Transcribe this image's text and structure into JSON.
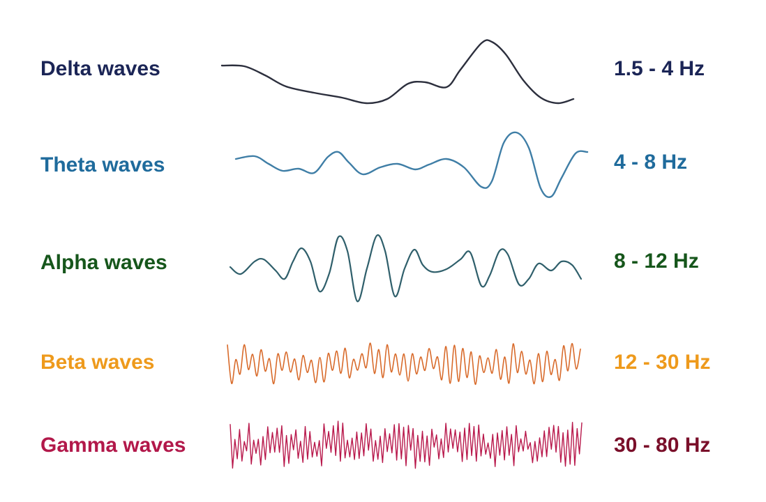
{
  "rows": [
    {
      "label": "Delta waves",
      "range": "1.5 - 4 Hz",
      "label_color": "#1b2556",
      "range_color": "#1b2556",
      "wave_color": "#2c2f3d"
    },
    {
      "label": "Theta waves",
      "range": "4 - 8 Hz",
      "label_color": "#1f6b9c",
      "range_color": "#1f6b9c",
      "wave_color": "#3f7ea6"
    },
    {
      "label": "Alpha waves",
      "range": "8 - 12 Hz",
      "label_color": "#16561b",
      "range_color": "#16561b",
      "wave_color": "#2f5f6b"
    },
    {
      "label": "Beta waves",
      "range": "12 - 30 Hz",
      "label_color": "#ee9a1c",
      "range_color": "#ee9a1c",
      "wave_color": "#d86a2a"
    },
    {
      "label": "Gamma waves",
      "range": "30 - 80 Hz",
      "label_color": "#b2184a",
      "range_color": "#7a0f2a",
      "wave_color": "#b8184b"
    }
  ]
}
